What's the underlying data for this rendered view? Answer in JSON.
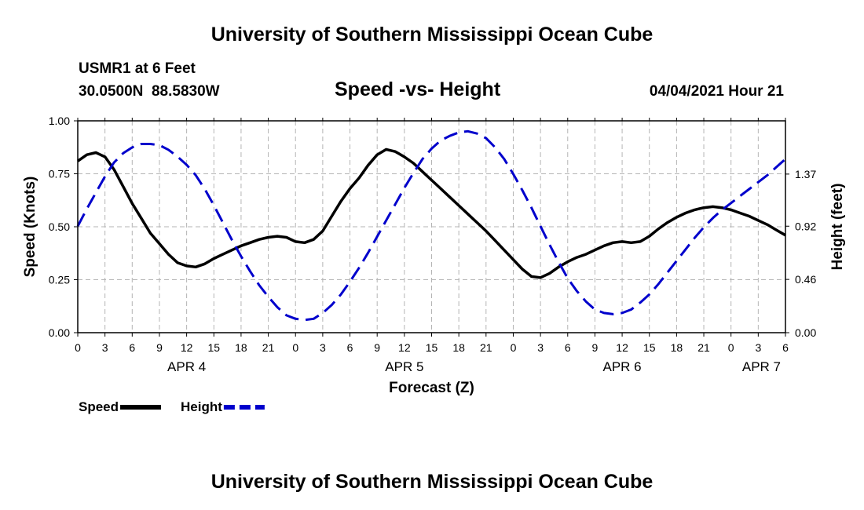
{
  "page": {
    "title_top": "University of Southern Mississippi Ocean Cube",
    "title_bottom": "University of Southern Mississippi Ocean Cube",
    "station": "USMR1 at 6 Feet",
    "coords": "30.0500N  88.5830W",
    "subtitle": "Speed -vs- Height",
    "datetime": "04/04/2021 Hour 21"
  },
  "chart_data": {
    "type": "line",
    "title": "Speed -vs- Height",
    "xlabel": "Forecast (Z)",
    "ylabel": "Speed (Knots)",
    "y2label": "Height (feet)",
    "x_unit": "hours from APR 4 00Z",
    "xlim": [
      0,
      78
    ],
    "ylim": [
      0,
      1
    ],
    "y2lim": [
      0,
      1.83
    ],
    "x_ticks": [
      {
        "x": 0,
        "label": "0"
      },
      {
        "x": 3,
        "label": "3"
      },
      {
        "x": 6,
        "label": "6"
      },
      {
        "x": 9,
        "label": "9"
      },
      {
        "x": 12,
        "label": "12"
      },
      {
        "x": 15,
        "label": "15"
      },
      {
        "x": 18,
        "label": "18"
      },
      {
        "x": 21,
        "label": "21"
      },
      {
        "x": 24,
        "label": "0"
      },
      {
        "x": 27,
        "label": "3"
      },
      {
        "x": 30,
        "label": "6"
      },
      {
        "x": 33,
        "label": "9"
      },
      {
        "x": 36,
        "label": "12"
      },
      {
        "x": 39,
        "label": "15"
      },
      {
        "x": 42,
        "label": "18"
      },
      {
        "x": 45,
        "label": "21"
      },
      {
        "x": 48,
        "label": "0"
      },
      {
        "x": 51,
        "label": "3"
      },
      {
        "x": 54,
        "label": "6"
      },
      {
        "x": 57,
        "label": "9"
      },
      {
        "x": 60,
        "label": "12"
      },
      {
        "x": 63,
        "label": "15"
      },
      {
        "x": 66,
        "label": "18"
      },
      {
        "x": 69,
        "label": "21"
      },
      {
        "x": 72,
        "label": "0"
      },
      {
        "x": 75,
        "label": "3"
      },
      {
        "x": 78,
        "label": "6"
      }
    ],
    "date_labels": [
      {
        "x": 12,
        "label": "APR 4"
      },
      {
        "x": 36,
        "label": "APR 5"
      },
      {
        "x": 60,
        "label": "APR 6"
      },
      {
        "x": 78,
        "label": "APR 7"
      }
    ],
    "y_ticks": [
      {
        "y": 0,
        "label": "0.00"
      },
      {
        "y": 0.25,
        "label": "0.25"
      },
      {
        "y": 0.5,
        "label": "0.50"
      },
      {
        "y": 0.75,
        "label": "0.75"
      },
      {
        "y": 1.0,
        "label": "1.00"
      }
    ],
    "y2_ticks": [
      {
        "y": 0,
        "label": "0.00"
      },
      {
        "y": 0.46,
        "label": "0.46"
      },
      {
        "y": 0.92,
        "label": "0.92"
      },
      {
        "y": 1.37,
        "label": "1.37"
      }
    ],
    "series": [
      {
        "name": "Speed",
        "axis": "left",
        "color": "#000000",
        "dash": "solid",
        "points": [
          [
            0,
            0.81
          ],
          [
            1,
            0.84
          ],
          [
            2,
            0.85
          ],
          [
            3,
            0.83
          ],
          [
            4,
            0.77
          ],
          [
            5,
            0.69
          ],
          [
            6,
            0.61
          ],
          [
            7,
            0.54
          ],
          [
            8,
            0.47
          ],
          [
            9,
            0.42
          ],
          [
            10,
            0.37
          ],
          [
            11,
            0.33
          ],
          [
            12,
            0.315
          ],
          [
            13,
            0.31
          ],
          [
            14,
            0.325
          ],
          [
            15,
            0.35
          ],
          [
            16,
            0.37
          ],
          [
            17,
            0.39
          ],
          [
            18,
            0.41
          ],
          [
            19,
            0.425
          ],
          [
            20,
            0.44
          ],
          [
            21,
            0.45
          ],
          [
            22,
            0.455
          ],
          [
            23,
            0.45
          ],
          [
            24,
            0.43
          ],
          [
            25,
            0.425
          ],
          [
            26,
            0.44
          ],
          [
            27,
            0.48
          ],
          [
            28,
            0.55
          ],
          [
            29,
            0.62
          ],
          [
            30,
            0.68
          ],
          [
            31,
            0.73
          ],
          [
            32,
            0.79
          ],
          [
            33,
            0.84
          ],
          [
            34,
            0.865
          ],
          [
            35,
            0.855
          ],
          [
            36,
            0.83
          ],
          [
            37,
            0.8
          ],
          [
            38,
            0.76
          ],
          [
            39,
            0.72
          ],
          [
            40,
            0.68
          ],
          [
            41,
            0.64
          ],
          [
            42,
            0.6
          ],
          [
            43,
            0.56
          ],
          [
            44,
            0.52
          ],
          [
            45,
            0.48
          ],
          [
            46,
            0.435
          ],
          [
            47,
            0.39
          ],
          [
            48,
            0.345
          ],
          [
            49,
            0.3
          ],
          [
            50,
            0.265
          ],
          [
            51,
            0.26
          ],
          [
            52,
            0.28
          ],
          [
            53,
            0.31
          ],
          [
            54,
            0.335
          ],
          [
            55,
            0.355
          ],
          [
            56,
            0.37
          ],
          [
            57,
            0.39
          ],
          [
            58,
            0.41
          ],
          [
            59,
            0.425
          ],
          [
            60,
            0.43
          ],
          [
            61,
            0.425
          ],
          [
            62,
            0.43
          ],
          [
            63,
            0.455
          ],
          [
            64,
            0.49
          ],
          [
            65,
            0.52
          ],
          [
            66,
            0.545
          ],
          [
            67,
            0.565
          ],
          [
            68,
            0.58
          ],
          [
            69,
            0.59
          ],
          [
            70,
            0.595
          ],
          [
            71,
            0.59
          ],
          [
            72,
            0.58
          ],
          [
            73,
            0.565
          ],
          [
            74,
            0.55
          ],
          [
            75,
            0.53
          ],
          [
            76,
            0.51
          ],
          [
            77,
            0.485
          ],
          [
            78,
            0.46
          ]
        ]
      },
      {
        "name": "Height",
        "axis": "right",
        "color": "#0000cc",
        "dash": "dashed",
        "points": [
          [
            0,
            0.92
          ],
          [
            1,
            1.07
          ],
          [
            2,
            1.21
          ],
          [
            3,
            1.35
          ],
          [
            4,
            1.47
          ],
          [
            5,
            1.55
          ],
          [
            6,
            1.6
          ],
          [
            7,
            1.63
          ],
          [
            8,
            1.63
          ],
          [
            9,
            1.62
          ],
          [
            10,
            1.58
          ],
          [
            11,
            1.52
          ],
          [
            12,
            1.45
          ],
          [
            13,
            1.36
          ],
          [
            14,
            1.24
          ],
          [
            15,
            1.1
          ],
          [
            16,
            0.95
          ],
          [
            17,
            0.8
          ],
          [
            18,
            0.66
          ],
          [
            19,
            0.53
          ],
          [
            20,
            0.41
          ],
          [
            21,
            0.31
          ],
          [
            22,
            0.22
          ],
          [
            23,
            0.15
          ],
          [
            24,
            0.12
          ],
          [
            25,
            0.11
          ],
          [
            26,
            0.12
          ],
          [
            27,
            0.17
          ],
          [
            28,
            0.24
          ],
          [
            29,
            0.33
          ],
          [
            30,
            0.44
          ],
          [
            31,
            0.56
          ],
          [
            32,
            0.69
          ],
          [
            33,
            0.83
          ],
          [
            34,
            0.97
          ],
          [
            35,
            1.11
          ],
          [
            36,
            1.25
          ],
          [
            37,
            1.38
          ],
          [
            38,
            1.5
          ],
          [
            39,
            1.59
          ],
          [
            40,
            1.66
          ],
          [
            41,
            1.7
          ],
          [
            42,
            1.73
          ],
          [
            43,
            1.74
          ],
          [
            44,
            1.72
          ],
          [
            45,
            1.68
          ],
          [
            46,
            1.6
          ],
          [
            47,
            1.5
          ],
          [
            48,
            1.37
          ],
          [
            49,
            1.23
          ],
          [
            50,
            1.08
          ],
          [
            51,
            0.92
          ],
          [
            52,
            0.76
          ],
          [
            53,
            0.61
          ],
          [
            54,
            0.47
          ],
          [
            55,
            0.36
          ],
          [
            56,
            0.27
          ],
          [
            57,
            0.2
          ],
          [
            58,
            0.17
          ],
          [
            59,
            0.16
          ],
          [
            60,
            0.17
          ],
          [
            61,
            0.2
          ],
          [
            62,
            0.26
          ],
          [
            63,
            0.33
          ],
          [
            64,
            0.42
          ],
          [
            65,
            0.52
          ],
          [
            66,
            0.62
          ],
          [
            67,
            0.72
          ],
          [
            68,
            0.82
          ],
          [
            69,
            0.91
          ],
          [
            70,
            0.99
          ],
          [
            71,
            1.06
          ],
          [
            72,
            1.12
          ],
          [
            73,
            1.18
          ],
          [
            74,
            1.24
          ],
          [
            75,
            1.3
          ],
          [
            76,
            1.36
          ],
          [
            77,
            1.43
          ],
          [
            78,
            1.5
          ]
        ]
      }
    ],
    "legend": [
      {
        "label": "Speed",
        "color": "#000000",
        "dash": "solid"
      },
      {
        "label": "Height",
        "color": "#0000cc",
        "dash": "dashed"
      }
    ],
    "grid": true
  }
}
